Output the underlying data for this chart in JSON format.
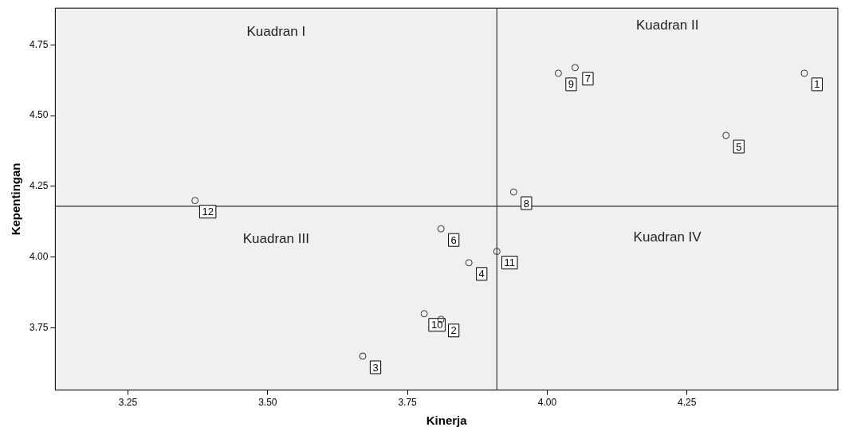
{
  "chart_data": {
    "type": "scatter",
    "xlabel": "Kinerja",
    "ylabel": "Kepentingan",
    "x": [
      4.46,
      3.81,
      3.67,
      3.86,
      4.32,
      3.81,
      4.05,
      3.94,
      4.02,
      3.78,
      3.91,
      3.37
    ],
    "series": [
      {
        "color": "#333333",
        "values": [
          4.65,
          3.78,
          3.65,
          3.98,
          4.43,
          4.1,
          4.67,
          4.23,
          4.65,
          3.8,
          4.02,
          4.2
        ]
      }
    ],
    "marker": "circle",
    "grid": false,
    "legend": false,
    "xlim": [
      3.12,
      4.52
    ],
    "ylim": [
      3.53,
      4.88
    ],
    "xticks": [
      {
        "value": 3.25,
        "label": "3.25"
      },
      {
        "value": 3.5,
        "label": "3.50"
      },
      {
        "value": 3.75,
        "label": "3.75"
      },
      {
        "value": 4.0,
        "label": "4.00"
      },
      {
        "value": 4.25,
        "label": "4.25"
      }
    ],
    "yticks": [
      {
        "value": 3.75,
        "label": "3.75"
      },
      {
        "value": 4.0,
        "label": "4.00"
      },
      {
        "value": 4.25,
        "label": "4.25"
      },
      {
        "value": 4.5,
        "label": "4.50"
      },
      {
        "value": 4.75,
        "label": "4.75"
      }
    ],
    "ref_lines": [
      {
        "axis": "x",
        "value": 3.91,
        "color": "#333333"
      },
      {
        "axis": "y",
        "value": 4.18,
        "color": "#333333"
      }
    ],
    "annotations": [
      "Kuadran I",
      "Kuadran II",
      "Kuadran III",
      "Kuadran IV",
      {
        "text": "1",
        "x": 4.46,
        "y": 4.65
      },
      {
        "text": "2",
        "x": 3.81,
        "y": 3.78
      },
      {
        "text": "3",
        "x": 3.67,
        "y": 3.65
      },
      {
        "text": "4",
        "x": 3.86,
        "y": 3.98
      },
      {
        "text": "5",
        "x": 4.32,
        "y": 4.43
      },
      {
        "text": "6",
        "x": 3.81,
        "y": 4.1
      },
      {
        "text": "7",
        "x": 4.05,
        "y": 4.67
      },
      {
        "text": "8",
        "x": 3.94,
        "y": 4.23
      },
      {
        "text": "9",
        "x": 4.02,
        "y": 4.65
      },
      {
        "text": "10",
        "x": 3.78,
        "y": 3.8
      },
      {
        "text": "11",
        "x": 3.91,
        "y": 4.02
      },
      {
        "text": "12",
        "x": 3.37,
        "y": 4.2
      }
    ]
  }
}
